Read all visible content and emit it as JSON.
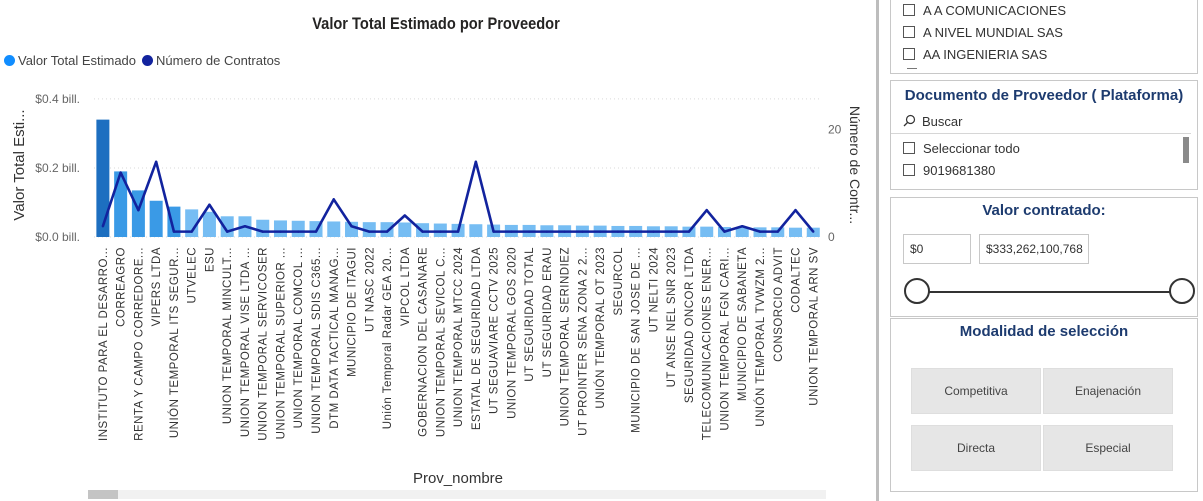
{
  "chart": {
    "title": "Valor Total Estimado por Proveedor",
    "legend": [
      {
        "label": "Valor Total Estimado",
        "color": "#118dff"
      },
      {
        "label": "Número de Contratos",
        "color": "#12239e"
      }
    ]
  },
  "chart_data": {
    "type": "bar",
    "title": "Valor Total Estimado por Proveedor",
    "xlabel": "Prov_nombre",
    "ylabel": "Valor Total Esti...",
    "y2label": "Número de Contr...",
    "ylim": [
      0,
      0.42
    ],
    "y2lim": [
      0,
      27
    ],
    "yticks": [
      {
        "v": 0,
        "label": "$0.0 bill."
      },
      {
        "v": 0.2,
        "label": "$0.2 bill."
      },
      {
        "v": 0.4,
        "label": "$0.4 bill."
      }
    ],
    "y2ticks": [
      {
        "v": 0,
        "label": "0"
      },
      {
        "v": 20,
        "label": "20"
      }
    ],
    "grid": true,
    "legend_position": "top-left",
    "categories": [
      "INSTITUTO PARA EL DESARRO...",
      "CORREAGRO",
      "RENTA Y CAMPO CORREDORE...",
      "VIPERS LTDA",
      "UNIÓN TEMPORAL ITS SEGUR...",
      "UTVELEC",
      "ESU",
      "UNION TEMPORAL MINCULT...",
      "UNION TEMPORAL VISE LTDA ...",
      "UNION TEMPORAL SERVICOSER",
      "UNION TEMPORAL SUPERIOR ...",
      "UNION TEMPORAL COMCOL ...",
      "UNION TEMPORAL SDIS C365...",
      "DTM DATA TACTICAL MANAG...",
      "MUNICIPIO DE ITAGUI",
      "UT NASC 2022",
      "Unión Temporal Radar GEA 20...",
      "VIPCOL LTDA",
      "GOBERNACION DEL CASANARE",
      "UNION TEMPORAL SEVICOL C...",
      "UNION TEMPORAL MTCC 2024",
      "ESTATAL DE SEGURIDAD LTDA",
      "UT SEGUAVIARE CCTV 2025",
      "UNION TEMPORAL GOS 2020",
      "UT SEGURIDAD TOTAL",
      "UT SEGURIDAD ERAU",
      "UNION TEMPORAL SERINDIEZ",
      "UT PROINTER SENA ZONA 2 2...",
      "UNIÓN TEMPORAL OT 2023",
      "SEGURCOL",
      "MUNICIPIO DE SAN JOSE DE ...",
      "UT NELTI 2024",
      "UT ANSE NEL SNR 2023",
      "SEGURIDAD ONCOR LTDA",
      "TELECOMUNICACIONES ENER...",
      "UNION TEMPORAL FGN CARI...",
      "MUNICIPIO DE SABANETA",
      "UNIÓN TEMPORAL TVWZM 2...",
      "CONSORCIO ADVIT",
      "CODALTEC",
      "UNION TEMPORAL ARN SV"
    ],
    "series": [
      {
        "name": "Valor Total Estimado",
        "axis": "left",
        "values": [
          0.34,
          0.19,
          0.135,
          0.105,
          0.088,
          0.08,
          0.073,
          0.06,
          0.06,
          0.05,
          0.048,
          0.047,
          0.046,
          0.045,
          0.044,
          0.043,
          0.043,
          0.042,
          0.04,
          0.039,
          0.038,
          0.037,
          0.036,
          0.035,
          0.035,
          0.034,
          0.034,
          0.033,
          0.033,
          0.032,
          0.032,
          0.031,
          0.031,
          0.03,
          0.03,
          0.029,
          0.029,
          0.028,
          0.028,
          0.027,
          0.027
        ]
      },
      {
        "name": "Número de Contratos",
        "axis": "right",
        "values": [
          2,
          12,
          5,
          14,
          1,
          1,
          6,
          1,
          2,
          1,
          1,
          1,
          1,
          7,
          2,
          1,
          1,
          4,
          1,
          1,
          1,
          14,
          1,
          1,
          1,
          1,
          1,
          1,
          1,
          1,
          1,
          1,
          1,
          1,
          5,
          1,
          2,
          1,
          1,
          5,
          1
        ]
      }
    ]
  },
  "slicers": {
    "proveedor": {
      "items": [
        "A A COMUNICACIONES",
        "A NIVEL MUNDIAL SAS",
        "AA INGENIERIA SAS"
      ]
    },
    "documento": {
      "title": "Documento de Proveedor ( Plataforma)",
      "search_placeholder": "Buscar",
      "items": [
        "Seleccionar todo",
        "9019681380"
      ]
    },
    "valor": {
      "title": "Valor contratado:",
      "min": "$0",
      "max": "$333,262,100,768"
    },
    "modalidad": {
      "title": "Modalidad de selección",
      "options": [
        "Competitiva",
        "Enajenación",
        "Directa",
        "Especial"
      ]
    }
  },
  "icons": {
    "search": "search-icon",
    "checkbox": "checkbox-icon"
  }
}
